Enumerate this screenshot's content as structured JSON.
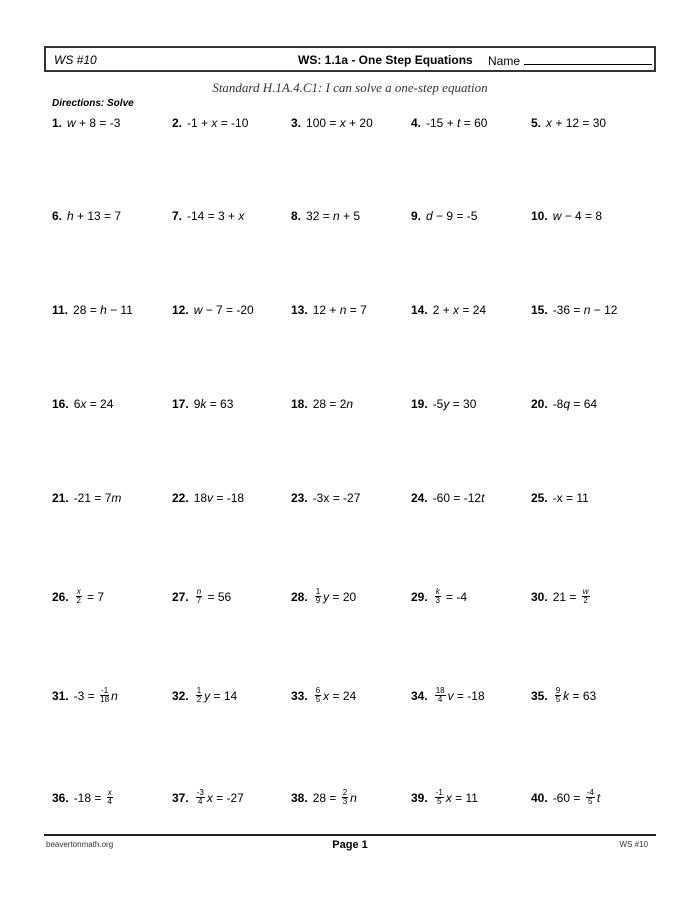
{
  "header": {
    "ws_label": "WS #10",
    "title": "WS: 1.1a - One Step Equations",
    "name_label": "Name"
  },
  "standard": "Standard H.1A.4.C1: I can solve a one-step equation",
  "directions": "Directions:  Solve",
  "problems": [
    {
      "n": "1.",
      "p": [
        {
          "v": "w"
        },
        {
          "t": " + 8 = -3"
        }
      ]
    },
    {
      "n": "2.",
      "p": [
        {
          "t": "-1 + "
        },
        {
          "v": "x"
        },
        {
          "t": " = -10"
        }
      ]
    },
    {
      "n": "3.",
      "p": [
        {
          "t": "100 = "
        },
        {
          "v": "x"
        },
        {
          "t": " + 20"
        }
      ]
    },
    {
      "n": "4.",
      "p": [
        {
          "t": "-15 + "
        },
        {
          "v": "t"
        },
        {
          "t": " = 60"
        }
      ]
    },
    {
      "n": "5.",
      "p": [
        {
          "v": "x"
        },
        {
          "t": " + 12 = 30"
        }
      ]
    },
    {
      "n": "6.",
      "p": [
        {
          "v": "h"
        },
        {
          "t": " + 13 = 7"
        }
      ]
    },
    {
      "n": "7.",
      "p": [
        {
          "t": "-14 = 3 + "
        },
        {
          "v": "x"
        }
      ]
    },
    {
      "n": "8.",
      "p": [
        {
          "t": "32 = "
        },
        {
          "v": "n"
        },
        {
          "t": " + 5"
        }
      ]
    },
    {
      "n": "9.",
      "p": [
        {
          "v": "d"
        },
        {
          "t": " − 9 = -5"
        }
      ]
    },
    {
      "n": "10.",
      "p": [
        {
          "v": "w"
        },
        {
          "t": " − 4 = 8"
        }
      ]
    },
    {
      "n": "11.",
      "p": [
        {
          "t": "28 = "
        },
        {
          "v": "h"
        },
        {
          "t": " − 11"
        }
      ]
    },
    {
      "n": "12.",
      "p": [
        {
          "v": "w"
        },
        {
          "t": " − 7 = -20"
        }
      ]
    },
    {
      "n": "13.",
      "p": [
        {
          "t": "12 + "
        },
        {
          "v": "n"
        },
        {
          "t": " = 7"
        }
      ]
    },
    {
      "n": "14.",
      "p": [
        {
          "t": "2 + "
        },
        {
          "v": "x"
        },
        {
          "t": " = 24"
        }
      ]
    },
    {
      "n": "15.",
      "p": [
        {
          "t": "-36 = "
        },
        {
          "v": "n"
        },
        {
          "t": " − 12"
        }
      ]
    },
    {
      "n": "16.",
      "p": [
        {
          "t": "6"
        },
        {
          "v": "x"
        },
        {
          "t": " = 24"
        }
      ]
    },
    {
      "n": "17.",
      "p": [
        {
          "t": "9"
        },
        {
          "v": "k"
        },
        {
          "t": " = 63"
        }
      ]
    },
    {
      "n": "18.",
      "p": [
        {
          "t": "28 = 2"
        },
        {
          "v": "n"
        }
      ]
    },
    {
      "n": "19.",
      "p": [
        {
          "t": "-5"
        },
        {
          "v": "y"
        },
        {
          "t": " = 30"
        }
      ]
    },
    {
      "n": "20.",
      "p": [
        {
          "t": "-8"
        },
        {
          "v": "q"
        },
        {
          "t": " = 64"
        }
      ]
    },
    {
      "n": "21.",
      "p": [
        {
          "t": "-21 = 7"
        },
        {
          "v": "m"
        }
      ]
    },
    {
      "n": "22.",
      "p": [
        {
          "t": "18"
        },
        {
          "v": "v"
        },
        {
          "t": " = -18"
        }
      ]
    },
    {
      "n": "23.",
      "p": [
        {
          "t": "-3x = -27"
        }
      ]
    },
    {
      "n": "24.",
      "p": [
        {
          "t": "-60 = -12"
        },
        {
          "v": "t"
        }
      ]
    },
    {
      "n": "25.",
      "p": [
        {
          "t": "-x = 11"
        }
      ]
    },
    {
      "n": "26.",
      "p": [
        {
          "fn": "x",
          "fd": "2"
        },
        {
          "t": " = 7"
        }
      ]
    },
    {
      "n": "27.",
      "p": [
        {
          "fn": "n",
          "fd": "7"
        },
        {
          "t": " = 56"
        }
      ]
    },
    {
      "n": "28.",
      "p": [
        {
          "fn": "1",
          "fd": "9"
        },
        {
          "v": "y"
        },
        {
          "t": " = 20"
        }
      ]
    },
    {
      "n": "29.",
      "p": [
        {
          "fn": "k",
          "fd": "3"
        },
        {
          "t": " = -4"
        }
      ]
    },
    {
      "n": "30.",
      "p": [
        {
          "t": "21 = "
        },
        {
          "fn": "w",
          "fd": "2"
        }
      ]
    },
    {
      "n": "31.",
      "p": [
        {
          "t": "-3 = "
        },
        {
          "fn": "-1",
          "fd": "18"
        },
        {
          "v": "n"
        }
      ]
    },
    {
      "n": "32.",
      "p": [
        {
          "fn": "1",
          "fd": "2"
        },
        {
          "v": "y"
        },
        {
          "t": " = 14"
        }
      ]
    },
    {
      "n": "33.",
      "p": [
        {
          "fn": "6",
          "fd": "5"
        },
        {
          "v": "x"
        },
        {
          "t": " = 24"
        }
      ]
    },
    {
      "n": "34.",
      "p": [
        {
          "fn": "18",
          "fd": "4"
        },
        {
          "v": "v"
        },
        {
          "t": " = -18"
        }
      ]
    },
    {
      "n": "35.",
      "p": [
        {
          "fn": "9",
          "fd": "5"
        },
        {
          "v": "k"
        },
        {
          "t": " = 63"
        }
      ]
    },
    {
      "n": "36.",
      "p": [
        {
          "t": "-18 = "
        },
        {
          "fn": "x",
          "fd": "4"
        }
      ]
    },
    {
      "n": "37.",
      "p": [
        {
          "fn": "-3",
          "fd": "4"
        },
        {
          "v": "x"
        },
        {
          "t": " = -27"
        }
      ]
    },
    {
      "n": "38.",
      "p": [
        {
          "t": "28 = "
        },
        {
          "fn": "2",
          "fd": "3"
        },
        {
          "v": "n"
        }
      ]
    },
    {
      "n": "39.",
      "p": [
        {
          "fn": "-1",
          "fd": "5"
        },
        {
          "v": "x"
        },
        {
          "t": " = 11"
        }
      ]
    },
    {
      "n": "40.",
      "p": [
        {
          "t": "-60 = "
        },
        {
          "fn": "-4",
          "fd": "5"
        },
        {
          "v": "t"
        }
      ]
    }
  ],
  "footer": {
    "left": "beavertonmath.org",
    "center": "Page 1",
    "right": "WS #10"
  }
}
